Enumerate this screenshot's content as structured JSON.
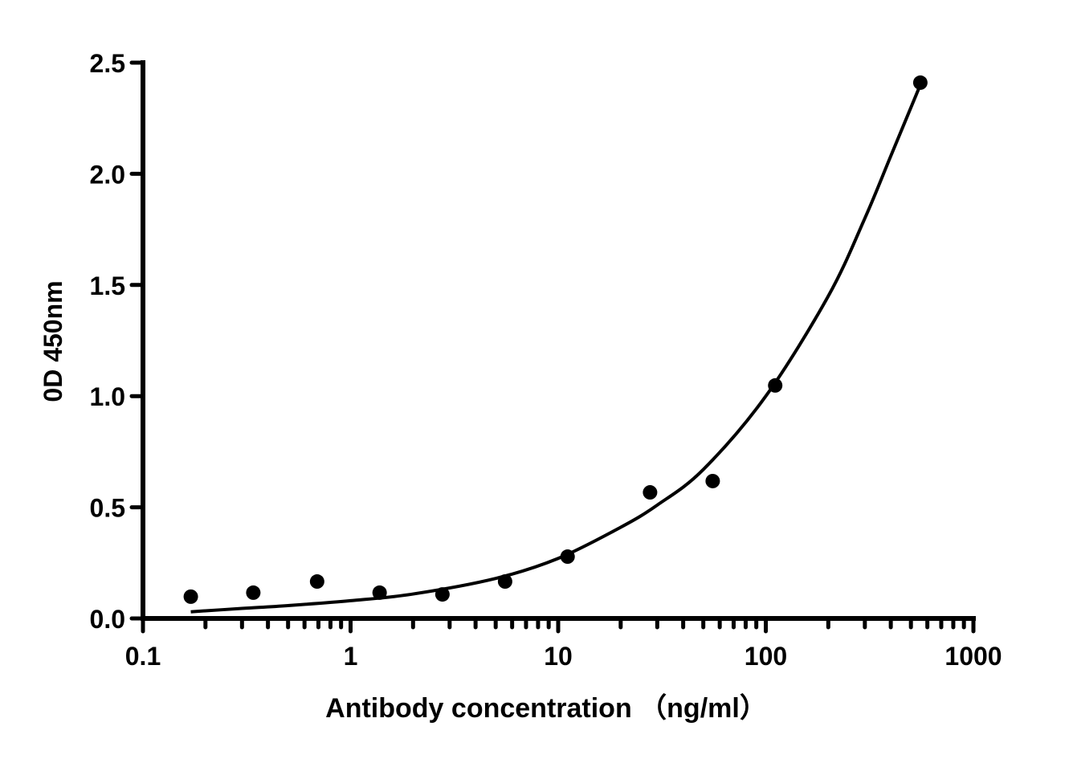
{
  "chart_data": {
    "type": "scatter",
    "title": "",
    "xlabel": "Antibody concentration （ng/ml）",
    "ylabel": "0D 450nm",
    "x_scale": "log",
    "xlim": [
      0.1,
      1000
    ],
    "ylim": [
      0,
      2.5
    ],
    "x_ticks": [
      "0.1",
      "1",
      "10",
      "100",
      "1000"
    ],
    "x_tick_values": [
      0.1,
      1,
      10,
      100,
      1000
    ],
    "y_ticks": [
      "0.0",
      "0.5",
      "1.0",
      "1.5",
      "2.0",
      "2.5"
    ],
    "y_tick_values": [
      0,
      0.5,
      1.0,
      1.5,
      2.0,
      2.5
    ],
    "grid": false,
    "series": [
      {
        "x": [
          0.17,
          0.34,
          0.69,
          1.38,
          2.77,
          5.55,
          11.1,
          27.7,
          55.5,
          111,
          555
        ],
        "y": [
          0.098,
          0.116,
          0.166,
          0.116,
          0.108,
          0.166,
          0.278,
          0.567,
          0.618,
          1.048,
          2.41
        ],
        "marker": "circle",
        "color": "#000000"
      }
    ],
    "fit_curve": {
      "x": [
        0.17,
        0.3,
        0.5,
        1,
        2,
        5,
        10,
        20,
        30,
        50,
        100,
        200,
        300,
        400,
        555
      ],
      "y": [
        0.03,
        0.045,
        0.058,
        0.08,
        0.11,
        0.18,
        0.27,
        0.41,
        0.51,
        0.67,
        1.0,
        1.45,
        1.8,
        2.08,
        2.4
      ],
      "color": "#000000"
    }
  }
}
